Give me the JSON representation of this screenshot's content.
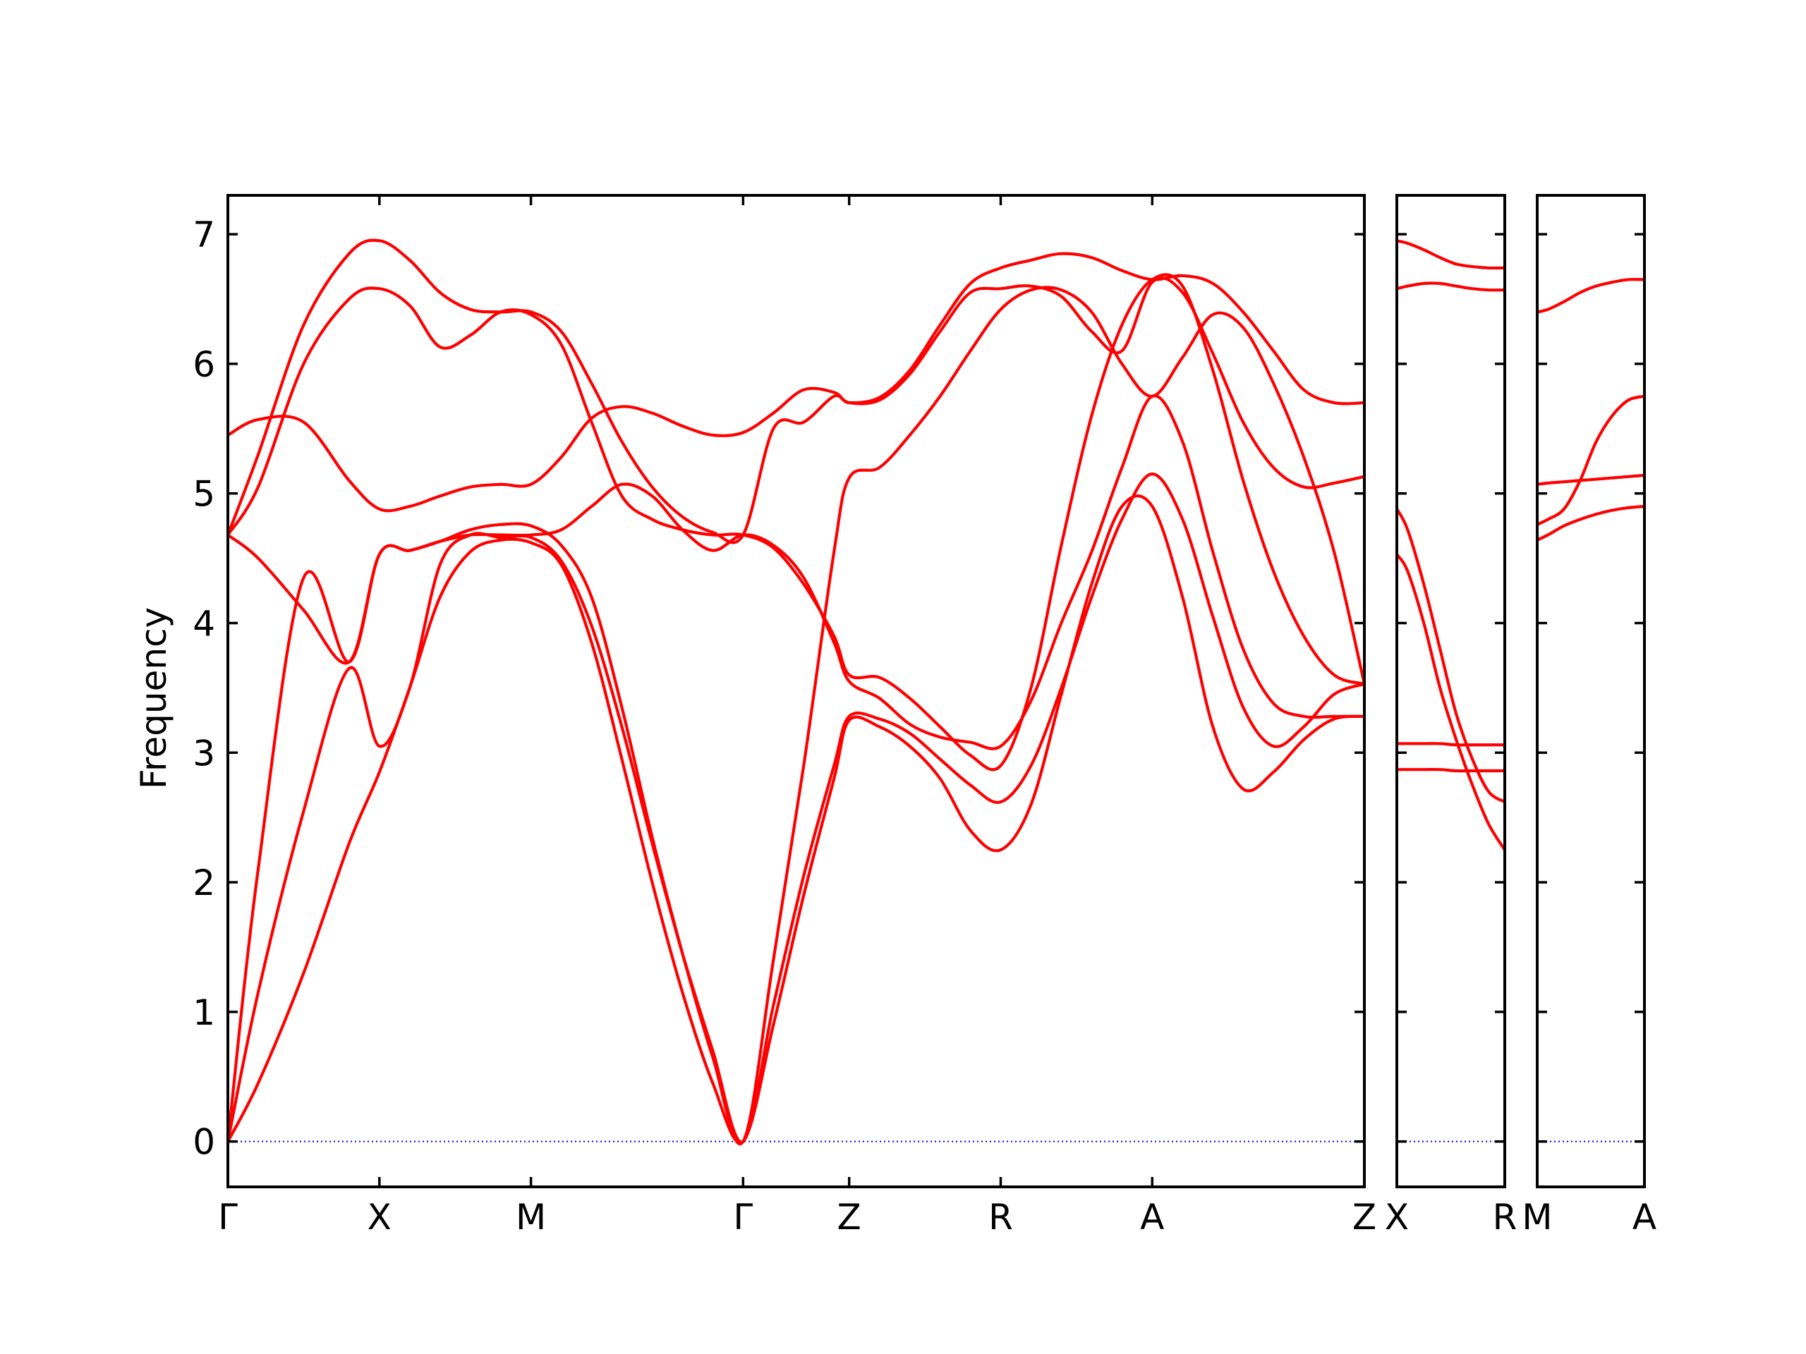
{
  "chart_data": {
    "type": "line",
    "ylabel": "Frequency",
    "ylim": [
      -0.35,
      7.3
    ],
    "yticks": [
      0,
      1,
      2,
      3,
      4,
      5,
      6,
      7
    ],
    "grid": false,
    "band_color": "#ff0000",
    "zero_line_color": "#0000ff",
    "panels": [
      {
        "xlim": [
          0,
          7.5
        ],
        "xticks": [
          {
            "pos": 0,
            "label": "Γ"
          },
          {
            "pos": 1.0,
            "label": "X"
          },
          {
            "pos": 2.0,
            "label": "M"
          },
          {
            "pos": 3.4,
            "label": "Γ"
          },
          {
            "pos": 4.1,
            "label": "Z"
          },
          {
            "pos": 5.1,
            "label": "R"
          },
          {
            "pos": 6.1,
            "label": "A"
          },
          {
            "pos": 7.5,
            "label": "Z"
          }
        ],
        "series": [
          {
            "x": [
              0,
              0.2,
              0.5,
              0.8,
              1.0,
              1.2,
              1.4,
              1.6,
              1.8,
              2.0,
              2.2,
              2.4,
              2.6,
              2.8,
              3.0,
              3.2,
              3.4,
              3.6,
              3.8,
              4.0,
              4.1,
              4.3,
              4.5,
              4.7,
              4.9,
              5.1,
              5.3,
              5.5,
              5.7,
              5.9,
              6.1,
              6.3,
              6.5,
              6.7,
              6.9,
              7.1,
              7.3,
              7.5
            ],
            "y": [
              0,
              0.45,
              1.3,
              2.3,
              2.85,
              3.5,
              4.2,
              4.55,
              4.64,
              4.62,
              4.45,
              3.85,
              2.95,
              2.0,
              1.15,
              0.45,
              0,
              0.9,
              1.9,
              2.8,
              3.25,
              3.2,
              3.05,
              2.8,
              2.4,
              2.25,
              2.6,
              3.45,
              4.3,
              4.9,
              4.9,
              4.2,
              3.2,
              2.72,
              2.85,
              3.1,
              3.26,
              3.28
            ]
          },
          {
            "x": [
              0,
              0.2,
              0.5,
              0.8,
              1.0,
              1.2,
              1.4,
              1.6,
              1.8,
              2.0,
              2.2,
              2.4,
              2.6,
              2.8,
              3.0,
              3.2,
              3.4,
              3.6,
              3.8,
              4.0,
              4.1,
              4.3,
              4.5,
              4.7,
              4.9,
              5.1,
              5.3,
              5.5,
              5.7,
              5.9,
              6.1,
              6.3,
              6.5,
              6.7,
              6.9,
              7.1,
              7.3,
              7.5
            ],
            "y": [
              0,
              1.15,
              2.55,
              3.65,
              3.05,
              3.5,
              4.45,
              4.68,
              4.66,
              4.66,
              4.48,
              3.98,
              3.2,
              2.3,
              1.45,
              0.7,
              0,
              1.05,
              2.05,
              2.9,
              3.28,
              3.26,
              3.15,
              2.95,
              2.75,
              2.62,
              2.9,
              3.5,
              4.2,
              4.8,
              5.15,
              4.8,
              4.05,
              3.35,
              3.05,
              3.2,
              3.45,
              3.53
            ]
          },
          {
            "x": [
              0,
              0.2,
              0.5,
              0.8,
              1.0,
              1.2,
              1.4,
              1.6,
              1.8,
              2.0,
              2.2,
              2.4,
              2.6,
              2.8,
              3.0,
              3.2,
              3.4,
              3.6,
              3.8,
              4.0,
              4.1,
              4.3,
              4.5,
              4.7,
              4.9,
              5.1,
              5.3,
              5.5,
              5.7,
              5.9,
              6.1,
              6.3,
              6.5,
              6.7,
              6.9,
              7.1,
              7.3,
              7.5
            ],
            "y": [
              0,
              2.1,
              4.35,
              3.7,
              4.53,
              4.56,
              4.63,
              4.72,
              4.76,
              4.75,
              4.6,
              4.2,
              3.35,
              2.35,
              1.45,
              0.65,
              0,
              1.4,
              2.9,
              4.55,
              5.12,
              5.2,
              5.45,
              5.75,
              6.1,
              6.42,
              6.57,
              6.57,
              6.4,
              6.0,
              5.75,
              6.05,
              6.38,
              6.28,
              5.85,
              5.28,
              4.55,
              3.53
            ]
          },
          {
            "x": [
              0,
              0.2,
              0.5,
              0.8,
              1.0,
              1.2,
              1.4,
              1.6,
              1.8,
              2.0,
              2.2,
              2.4,
              2.6,
              2.8,
              3.0,
              3.2,
              3.4,
              3.6,
              3.8,
              4.0,
              4.1,
              4.3,
              4.5,
              4.7,
              4.9,
              5.1,
              5.3,
              5.5,
              5.7,
              5.9,
              6.1,
              6.3,
              6.5,
              6.7,
              6.9,
              7.1,
              7.3,
              7.5
            ],
            "y": [
              4.68,
              4.5,
              4.1,
              3.7,
              4.53,
              4.56,
              4.63,
              4.68,
              4.68,
              4.68,
              4.72,
              4.9,
              5.07,
              4.98,
              4.72,
              4.56,
              4.68,
              4.6,
              4.35,
              3.85,
              3.55,
              3.42,
              3.22,
              3.12,
              3.08,
              3.05,
              3.4,
              4.0,
              4.55,
              5.2,
              5.75,
              5.4,
              4.55,
              3.8,
              3.38,
              3.28,
              3.28,
              3.28
            ]
          },
          {
            "x": [
              0,
              0.2,
              0.5,
              0.8,
              1.0,
              1.2,
              1.4,
              1.6,
              1.8,
              2.0,
              2.2,
              2.4,
              2.6,
              2.8,
              3.0,
              3.2,
              3.4,
              3.6,
              3.8,
              4.0,
              4.1,
              4.3,
              4.5,
              4.7,
              4.9,
              5.1,
              5.3,
              5.5,
              5.7,
              5.9,
              6.1,
              6.3,
              6.5,
              6.7,
              6.9,
              7.1,
              7.3,
              7.5
            ],
            "y": [
              4.68,
              5.05,
              6.0,
              6.5,
              6.58,
              6.45,
              6.13,
              6.22,
              6.4,
              6.38,
              6.15,
              5.55,
              4.98,
              4.8,
              4.72,
              4.68,
              4.68,
              4.58,
              4.3,
              3.9,
              3.6,
              3.58,
              3.42,
              3.2,
              2.98,
              2.9,
              3.5,
              4.6,
              5.6,
              6.3,
              6.65,
              6.6,
              5.95,
              5.1,
              4.4,
              3.9,
              3.6,
              3.53
            ]
          },
          {
            "x": [
              0,
              0.2,
              0.5,
              0.8,
              1.0,
              1.2,
              1.4,
              1.6,
              1.8,
              2.0,
              2.2,
              2.4,
              2.6,
              2.8,
              3.0,
              3.2,
              3.4,
              3.6,
              3.8,
              4.0,
              4.1,
              4.3,
              4.5,
              4.7,
              4.9,
              5.1,
              5.3,
              5.5,
              5.7,
              5.9,
              6.1,
              6.3,
              6.5,
              6.7,
              6.9,
              7.1,
              7.3,
              7.5
            ],
            "y": [
              5.45,
              5.57,
              5.55,
              5.1,
              4.88,
              4.9,
              4.98,
              5.05,
              5.07,
              5.07,
              5.28,
              5.58,
              5.67,
              5.62,
              5.52,
              5.45,
              5.47,
              5.62,
              5.8,
              5.78,
              5.7,
              5.72,
              5.92,
              6.25,
              6.55,
              6.58,
              6.6,
              6.52,
              6.25,
              6.1,
              6.63,
              6.55,
              6.08,
              5.55,
              5.2,
              5.05,
              5.08,
              5.13
            ]
          },
          {
            "x": [
              0,
              0.2,
              0.5,
              0.8,
              1.0,
              1.2,
              1.4,
              1.6,
              1.8,
              2.0,
              2.2,
              2.4,
              2.6,
              2.8,
              3.0,
              3.2,
              3.4,
              3.6,
              3.8,
              4.0,
              4.1,
              4.3,
              4.5,
              4.7,
              4.9,
              5.1,
              5.3,
              5.5,
              5.7,
              5.9,
              6.1,
              6.3,
              6.5,
              6.7,
              6.9,
              7.1,
              7.3,
              7.5
            ],
            "y": [
              4.68,
              5.3,
              6.3,
              6.85,
              6.95,
              6.8,
              6.55,
              6.42,
              6.4,
              6.4,
              6.25,
              5.85,
              5.4,
              5.05,
              4.82,
              4.7,
              4.68,
              5.5,
              5.55,
              5.75,
              5.7,
              5.74,
              5.95,
              6.3,
              6.62,
              6.74,
              6.8,
              6.85,
              6.82,
              6.72,
              6.65,
              6.68,
              6.62,
              6.4,
              6.1,
              5.8,
              5.7,
              5.7
            ]
          }
        ]
      },
      {
        "xlim": [
          0,
          1
        ],
        "xticks": [
          {
            "pos": 0,
            "label": "X"
          },
          {
            "pos": 1,
            "label": "R"
          }
        ],
        "series": [
          {
            "x": [
              0,
              0.1,
              0.25,
              0.4,
              0.55,
              0.7,
              0.85,
              1.0
            ],
            "y": [
              2.87,
              2.87,
              2.87,
              2.87,
              2.86,
              2.86,
              2.86,
              2.86
            ]
          },
          {
            "x": [
              0,
              0.1,
              0.25,
              0.4,
              0.55,
              0.7,
              0.85,
              1.0
            ],
            "y": [
              3.07,
              3.07,
              3.07,
              3.07,
              3.06,
              3.06,
              3.06,
              3.06
            ]
          },
          {
            "x": [
              0,
              0.1,
              0.25,
              0.4,
              0.55,
              0.7,
              0.85,
              1.0
            ],
            "y": [
              4.53,
              4.4,
              4.0,
              3.5,
              3.1,
              2.75,
              2.45,
              2.25
            ]
          },
          {
            "x": [
              0,
              0.1,
              0.25,
              0.4,
              0.55,
              0.7,
              0.85,
              1.0
            ],
            "y": [
              4.88,
              4.72,
              4.3,
              3.8,
              3.3,
              2.95,
              2.7,
              2.62
            ]
          },
          {
            "x": [
              0,
              0.1,
              0.25,
              0.4,
              0.55,
              0.7,
              0.85,
              1.0
            ],
            "y": [
              6.58,
              6.6,
              6.62,
              6.62,
              6.6,
              6.58,
              6.57,
              6.57
            ]
          },
          {
            "x": [
              0,
              0.1,
              0.25,
              0.4,
              0.55,
              0.7,
              0.85,
              1.0
            ],
            "y": [
              6.95,
              6.93,
              6.88,
              6.82,
              6.77,
              6.75,
              6.74,
              6.74
            ]
          }
        ]
      },
      {
        "xlim": [
          0,
          1
        ],
        "xticks": [
          {
            "pos": 0,
            "label": "M"
          },
          {
            "pos": 1,
            "label": "A"
          }
        ],
        "series": [
          {
            "x": [
              0,
              0.1,
              0.25,
              0.4,
              0.55,
              0.7,
              0.85,
              1.0
            ],
            "y": [
              4.64,
              4.68,
              4.75,
              4.8,
              4.84,
              4.87,
              4.89,
              4.9
            ]
          },
          {
            "x": [
              0,
              0.1,
              0.25,
              0.4,
              0.55,
              0.7,
              0.85,
              1.0
            ],
            "y": [
              4.76,
              4.8,
              4.88,
              5.1,
              5.4,
              5.6,
              5.72,
              5.75
            ]
          },
          {
            "x": [
              0,
              0.1,
              0.25,
              0.4,
              0.55,
              0.7,
              0.85,
              1.0
            ],
            "y": [
              5.07,
              5.08,
              5.09,
              5.1,
              5.11,
              5.12,
              5.13,
              5.14
            ]
          },
          {
            "x": [
              0,
              0.1,
              0.25,
              0.4,
              0.55,
              0.7,
              0.85,
              1.0
            ],
            "y": [
              6.4,
              6.42,
              6.48,
              6.55,
              6.6,
              6.63,
              6.65,
              6.65
            ]
          }
        ]
      }
    ]
  }
}
